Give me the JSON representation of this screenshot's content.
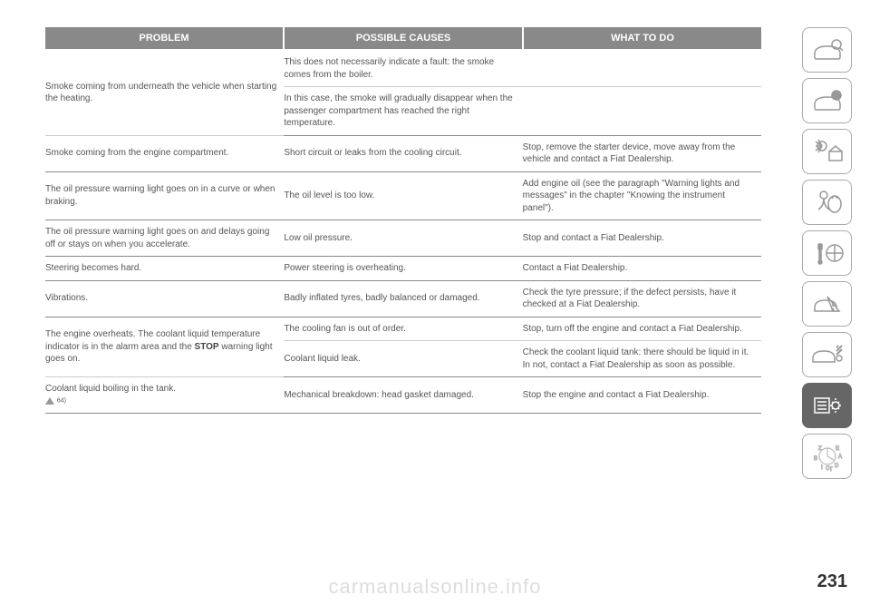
{
  "headers": {
    "c1": "PROBLEM",
    "c2": "POSSIBLE CAUSES",
    "c3": "WHAT TO DO"
  },
  "rows": [
    {
      "type": "inner",
      "c1": "",
      "c2": "This does not necessarily indicate a fault: the smoke comes from the boiler.",
      "c3": ""
    },
    {
      "type": "sep",
      "c1": "Smoke coming from underneath the vehicle when starting the heating.",
      "c1rowspan": -1,
      "c2": "In this case, the smoke will gradually disappear when the passenger compartment has reached the right temperature.",
      "c3": ""
    },
    {
      "type": "sep",
      "c1": "Smoke coming from the engine compartment.",
      "c2": "Short circuit or leaks from the cooling circuit.",
      "c3": "Stop, remove the starter device, move away from the vehicle and contact a Fiat Dealership."
    },
    {
      "type": "sep",
      "c1": "The oil pressure warning light goes on in a curve or when braking.",
      "c2": "The oil level is too low.",
      "c3": "Add engine oil (see the paragraph \"Warning lights and messages\" in the chapter \"Knowing the instrument panel\")."
    },
    {
      "type": "sep",
      "c1": "The oil pressure warning light goes on and delays going off or stays on when you accelerate.",
      "c2": "Low oil pressure.",
      "c3": "Stop and contact a Fiat Dealership."
    },
    {
      "type": "sep",
      "c1": "Steering becomes hard.",
      "c2": "Power steering is overheating.",
      "c3": "Contact a Fiat Dealership."
    },
    {
      "type": "sep",
      "c1": "Vibrations.",
      "c2": "Badly inflated tyres, badly balanced or damaged.",
      "c3": "Check the tyre pressure; if the defect persists, have it checked at a Fiat Dealership."
    },
    {
      "type": "inner",
      "c1": "",
      "c2": "The cooling fan is out of order.",
      "c3": "Stop, turn off the engine and contact a Fiat Dealership."
    },
    {
      "type": "sep",
      "c1html": "The engine overheats. The coolant liquid temperature indicator is in the alarm area and the <span class='bold'>STOP</span> warning light goes on.",
      "c1rowspan": -1,
      "c2": "Coolant liquid leak.",
      "c3": "Check the coolant liquid tank: there should be liquid in it. In not, contact a Fiat Dealership as soon as possible."
    },
    {
      "type": "sep",
      "c1html": "Coolant liquid boiling in the tank.<br><span class='triangle'></span> <span class='note'>64)</span>",
      "c2": "Mechanical breakdown: head gasket damaged.",
      "c3": "Stop the engine and contact a Fiat Dealership."
    }
  ],
  "page_number": "231",
  "watermark": "carmanualsonline.info"
}
